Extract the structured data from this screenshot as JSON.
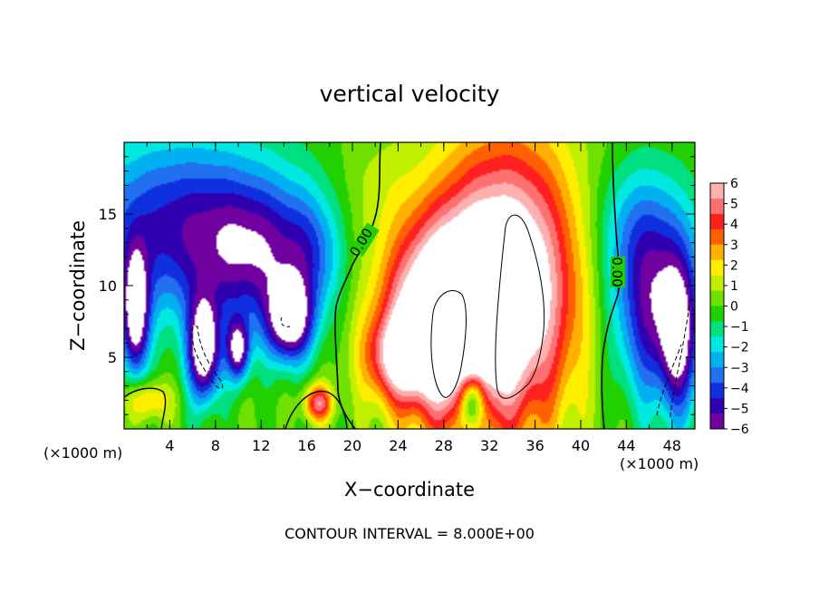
{
  "chart_data": {
    "type": "heatmap",
    "title": "vertical velocity",
    "xlabel": "X−coordinate",
    "ylabel": "Z−coordinate",
    "x_unit_left": "(×1000 m)",
    "x_unit_right": "(×1000 m)",
    "footer": "CONTOUR INTERVAL = 8.000E+00",
    "xlim": [
      0,
      50
    ],
    "ylim": [
      0,
      20
    ],
    "x_ticks": [
      4,
      8,
      12,
      16,
      20,
      24,
      28,
      32,
      36,
      40,
      44,
      48
    ],
    "x_tick_labels": [
      "4",
      "8",
      "12",
      "16",
      "20",
      "24",
      "28",
      "32",
      "36",
      "40",
      "44",
      "48"
    ],
    "y_ticks": [
      5,
      10,
      15
    ],
    "y_tick_labels": [
      "5",
      "10",
      "15"
    ],
    "contour_labels": [
      {
        "text": "0.00",
        "x": 21.5,
        "z": 12.8
      },
      {
        "text": "0.00",
        "x": 43.5,
        "z": 10.6
      }
    ],
    "colorbar": {
      "min": -6,
      "max": 6,
      "tick_values": [
        6,
        5,
        4,
        3,
        2,
        1,
        0,
        -1,
        -2,
        -3,
        -4,
        -5,
        -6
      ],
      "tick_labels": [
        "6",
        "5",
        "4",
        "3",
        "2",
        "1",
        "0",
        "−1",
        "−2",
        "−3",
        "−4",
        "−5",
        "−6"
      ],
      "colors": [
        "#ffb0b0",
        "#ff7070",
        "#ff2020",
        "#ff6000",
        "#ffb000",
        "#ffee00",
        "#c0f000",
        "#70e000",
        "#20d000",
        "#00e080",
        "#00e8e0",
        "#00b0f0",
        "#2070f0",
        "#1030e0",
        "#3000b0",
        "#7000a0"
      ]
    },
    "field_features": [
      {
        "x": 5.0,
        "z": 14.0,
        "sx": 6.5,
        "sz": 4.5,
        "amp": -4.8
      },
      {
        "x": 12.0,
        "z": 12.0,
        "sx": 3.5,
        "sz": 3.5,
        "amp": -3.5
      },
      {
        "x": 14.5,
        "z": 7.5,
        "sx": 1.4,
        "sz": 2.0,
        "amp": -6.6
      },
      {
        "x": 7.0,
        "z": 5.5,
        "sx": 1.0,
        "sz": 2.5,
        "amp": -7.5
      },
      {
        "x": 10.0,
        "z": 5.5,
        "sx": 0.7,
        "sz": 1.5,
        "amp": -6.0
      },
      {
        "x": 1.0,
        "z": 8.0,
        "sx": 0.8,
        "sz": 3.0,
        "amp": -7.0
      },
      {
        "x": 16.5,
        "z": 12.0,
        "sx": 1.8,
        "sz": 3.0,
        "amp": -2.0
      },
      {
        "x": 2.0,
        "z": 2.0,
        "sx": 1.5,
        "sz": 1.0,
        "amp": 2.8
      },
      {
        "x": 17.0,
        "z": 1.8,
        "sx": 0.9,
        "sz": 0.9,
        "amp": 5.0
      },
      {
        "x": 27.5,
        "z": 7.5,
        "sx": 3.5,
        "sz": 4.5,
        "amp": 8.0
      },
      {
        "x": 24.0,
        "z": 5.0,
        "sx": 2.0,
        "sz": 2.0,
        "amp": 4.0
      },
      {
        "x": 33.5,
        "z": 10.0,
        "sx": 4.5,
        "sz": 7.0,
        "amp": 8.5
      },
      {
        "x": 30.5,
        "z": 2.0,
        "sx": 0.8,
        "sz": 1.5,
        "amp": -6.0
      },
      {
        "x": 47.0,
        "z": 8.0,
        "sx": 3.0,
        "sz": 4.5,
        "amp": -5.5
      },
      {
        "x": 48.5,
        "z": 6.0,
        "sx": 1.0,
        "sz": 3.5,
        "amp": -3.5
      },
      {
        "x": 45.0,
        "z": 14.0,
        "sx": 3.0,
        "sz": 3.5,
        "amp": -2.5
      },
      {
        "x": 22.0,
        "z": 17.0,
        "sx": 2.5,
        "sz": 3.0,
        "amp": 0.8
      }
    ]
  }
}
